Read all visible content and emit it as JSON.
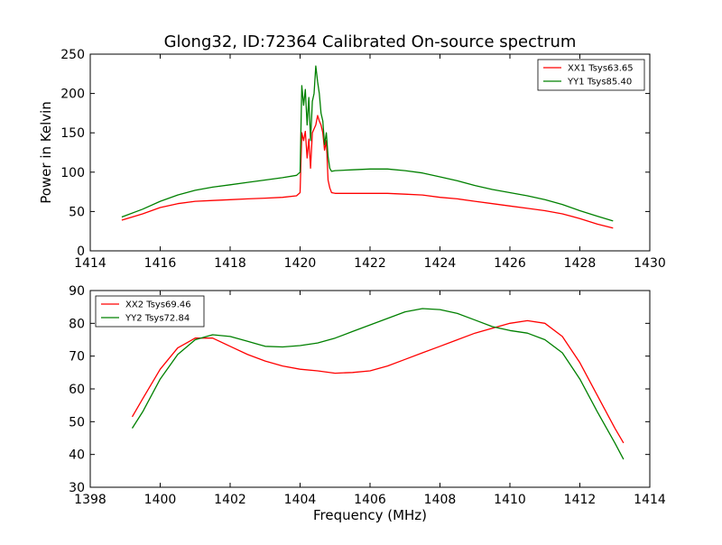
{
  "title": "Glong32, ID:72364 Calibrated On-source spectrum",
  "colors": {
    "xx": "#ff0000",
    "yy": "#008000"
  },
  "chart_data": [
    {
      "type": "line",
      "ylabel": "Power in Kelvin",
      "xlabel": "",
      "xlim": [
        1414,
        1430
      ],
      "ylim": [
        0,
        250
      ],
      "xticks": [
        1414,
        1416,
        1418,
        1420,
        1422,
        1424,
        1426,
        1428,
        1430
      ],
      "yticks": [
        0,
        50,
        100,
        150,
        200,
        250
      ],
      "legend_position": "top-right",
      "series": [
        {
          "name": "XX1 Tsys63.65",
          "color": "#ff0000",
          "x": [
            1414.9,
            1415.5,
            1416,
            1416.5,
            1417,
            1417.5,
            1418,
            1418.5,
            1419,
            1419.5,
            1419.9,
            1420.0,
            1420.05,
            1420.1,
            1420.15,
            1420.2,
            1420.25,
            1420.3,
            1420.35,
            1420.4,
            1420.45,
            1420.5,
            1420.55,
            1420.6,
            1420.65,
            1420.7,
            1420.75,
            1420.8,
            1420.85,
            1420.9,
            1421,
            1421.5,
            1422,
            1422.5,
            1423,
            1423.5,
            1424,
            1424.5,
            1425,
            1425.5,
            1426,
            1426.5,
            1427,
            1427.5,
            1428,
            1428.5,
            1428.95
          ],
          "y": [
            39,
            47,
            55,
            60,
            63,
            64,
            65,
            66,
            67,
            68,
            70,
            74,
            150,
            140,
            152,
            118,
            142,
            105,
            150,
            155,
            160,
            172,
            165,
            160,
            150,
            128,
            140,
            90,
            80,
            74,
            73,
            73,
            73,
            73,
            72,
            71,
            68,
            66,
            63,
            60,
            57,
            54,
            51,
            47,
            41,
            34,
            29
          ]
        },
        {
          "name": "YY1 Tsys85.40",
          "color": "#008000",
          "x": [
            1414.9,
            1415.5,
            1416,
            1416.5,
            1417,
            1417.5,
            1418,
            1418.5,
            1419,
            1419.5,
            1419.9,
            1420.0,
            1420.05,
            1420.1,
            1420.15,
            1420.2,
            1420.25,
            1420.3,
            1420.35,
            1420.4,
            1420.45,
            1420.5,
            1420.55,
            1420.6,
            1420.65,
            1420.7,
            1420.75,
            1420.8,
            1420.85,
            1420.9,
            1421,
            1421.5,
            1422,
            1422.5,
            1423,
            1423.5,
            1424,
            1424.5,
            1425,
            1425.5,
            1426,
            1426.5,
            1427,
            1427.5,
            1428,
            1428.5,
            1428.95
          ],
          "y": [
            43,
            53,
            63,
            71,
            77,
            81,
            84,
            87,
            90,
            93,
            96,
            100,
            210,
            185,
            205,
            160,
            195,
            140,
            190,
            200,
            235,
            215,
            200,
            175,
            165,
            135,
            150,
            120,
            105,
            101,
            102,
            103,
            104,
            104,
            102,
            99,
            94,
            89,
            83,
            78,
            74,
            70,
            65,
            59,
            51,
            44,
            38
          ]
        }
      ]
    },
    {
      "type": "line",
      "xlabel": "Frequency (MHz)",
      "ylabel": "",
      "xlim": [
        1398,
        1414
      ],
      "ylim": [
        30,
        90
      ],
      "xticks": [
        1398,
        1400,
        1402,
        1404,
        1406,
        1408,
        1410,
        1412,
        1414
      ],
      "yticks": [
        30,
        40,
        50,
        60,
        70,
        80,
        90
      ],
      "legend_position": "top-left",
      "series": [
        {
          "name": "XX2 Tsys69.46",
          "color": "#ff0000",
          "x": [
            1399.2,
            1399.5,
            1400,
            1400.5,
            1401,
            1401.5,
            1402,
            1402.5,
            1403,
            1403.5,
            1404,
            1404.5,
            1405,
            1405.5,
            1406,
            1406.5,
            1407,
            1407.5,
            1408,
            1408.5,
            1409,
            1409.5,
            1410,
            1410.5,
            1411,
            1411.5,
            1412,
            1412.5,
            1413,
            1413.25
          ],
          "y": [
            51.5,
            57,
            66,
            72.5,
            75.5,
            75.5,
            73,
            70.5,
            68.5,
            67,
            66,
            65.5,
            64.8,
            65,
            65.5,
            67,
            69,
            71,
            73,
            75,
            77,
            78.5,
            80,
            80.8,
            80,
            76,
            68,
            58,
            48,
            43.5
          ]
        },
        {
          "name": "YY2 Tsys72.84",
          "color": "#008000",
          "x": [
            1399.2,
            1399.5,
            1400,
            1400.5,
            1401,
            1401.5,
            1402,
            1402.5,
            1403,
            1403.5,
            1404,
            1404.5,
            1405,
            1405.5,
            1406,
            1406.5,
            1407,
            1407.5,
            1408,
            1408.5,
            1409,
            1409.5,
            1410,
            1410.5,
            1411,
            1411.5,
            1412,
            1412.5,
            1413,
            1413.25
          ],
          "y": [
            48,
            53,
            63,
            70.5,
            75,
            76.5,
            76,
            74.5,
            73,
            72.8,
            73.2,
            74,
            75.5,
            77.5,
            79.5,
            81.5,
            83.5,
            84.5,
            84.2,
            83,
            81,
            79,
            77.8,
            77,
            75,
            71,
            63,
            53,
            43.5,
            38.5
          ]
        }
      ]
    }
  ]
}
